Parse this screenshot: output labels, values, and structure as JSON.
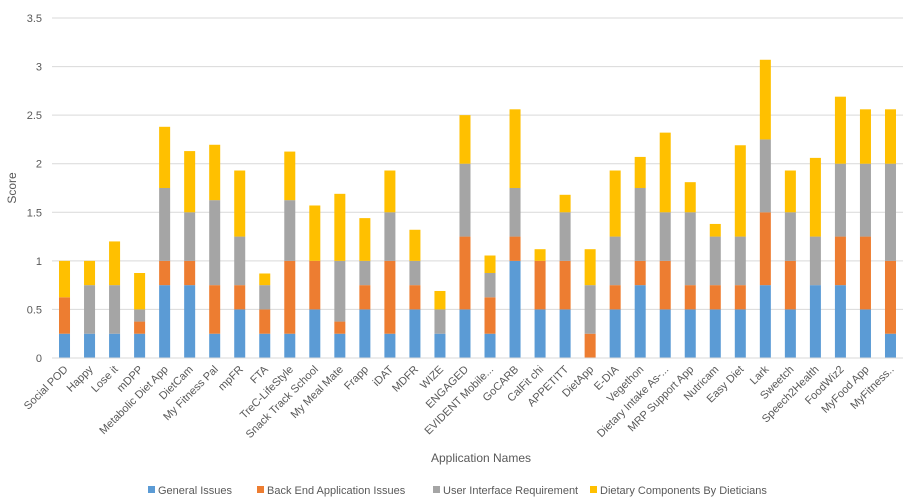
{
  "chart_data": {
    "type": "bar",
    "stacked": true,
    "xlabel": "Application Names",
    "ylabel": "Score",
    "ylim": [
      0,
      3.5
    ],
    "yticks": [
      "0",
      "0.5",
      "1",
      "1.5",
      "2",
      "2.5",
      "3",
      "3.5"
    ],
    "grid": true,
    "legend_position": "bottom",
    "categories": [
      "Social POD",
      "Happy",
      "Lose it",
      "mDPP",
      "Metabolic Diet App",
      "DietCam",
      "My Fitness Pal",
      "mpFR",
      "FTA",
      "TreC-LifeStyle",
      "Snack Track School",
      "My Meal Mate",
      "Frapp",
      "iDAT",
      "MDFR",
      "WIZE",
      "ENGAGED",
      "EVIDENT Mobile...",
      "GoCARB",
      "CalFit chi",
      "APPETITT",
      "DietApp",
      "E-DIA",
      "Vegethon",
      "Dietary Intake As-...",
      "MRP Support App",
      "Nutricam",
      "Easy Diet",
      "Lark",
      "Sweetch",
      "Speech2Health",
      "FoodWiz2",
      "MyFood App",
      "MyFitness.."
    ],
    "series": [
      {
        "name": "General Issues",
        "color": "#5B9BD5",
        "values": [
          0.25,
          0.25,
          0.25,
          0.25,
          0.75,
          0.75,
          0.25,
          0.5,
          0.25,
          0.25,
          0.5,
          0.25,
          0.5,
          0.25,
          0.5,
          0.25,
          0.5,
          0.25,
          1.0,
          0.5,
          0.5,
          0,
          0.5,
          0.75,
          0.5,
          0.5,
          0.5,
          0.5,
          0.75,
          0.5,
          0.75,
          0.75,
          0.5,
          0.25
        ]
      },
      {
        "name": "Back End Application Issues",
        "color": "#ED7D31",
        "values": [
          0.375,
          0,
          0,
          0.125,
          0.25,
          0.25,
          0.5,
          0.25,
          0.25,
          0.75,
          0.5,
          0.125,
          0.25,
          0.75,
          0.25,
          0,
          0.75,
          0.375,
          0.25,
          0.5,
          0.5,
          0.25,
          0.25,
          0.25,
          0.5,
          0.25,
          0.25,
          0.25,
          0.75,
          0.5,
          0,
          0.5,
          0.75,
          0.75
        ]
      },
      {
        "name": "User Interface Requirement",
        "color": "#A5A5A5",
        "values": [
          0,
          0.5,
          0.5,
          0.125,
          0.75,
          0.5,
          0.875,
          0.5,
          0.25,
          0.625,
          0,
          0.625,
          0.25,
          0.5,
          0.25,
          0.25,
          0.75,
          0.25,
          0.5,
          0,
          0.5,
          0.5,
          0.5,
          0.75,
          0.5,
          0.75,
          0.5,
          0.5,
          0.75,
          0.5,
          0.5,
          0.75,
          0.75,
          1.0
        ]
      },
      {
        "name": "Dietary Components By Dieticians",
        "color": "#FFC000",
        "values": [
          0.375,
          0.25,
          0.45,
          0.375,
          0.63,
          0.63,
          0.57,
          0.68,
          0.12,
          0.5,
          0.57,
          0.69,
          0.44,
          0.43,
          0.32,
          0.19,
          0.5,
          0.18,
          0.81,
          0.12,
          0.18,
          0.37,
          0.68,
          0.32,
          0.82,
          0.31,
          0.13,
          0.94,
          0.82,
          0.43,
          0.81,
          0.69,
          0.56,
          0.56
        ]
      }
    ]
  }
}
